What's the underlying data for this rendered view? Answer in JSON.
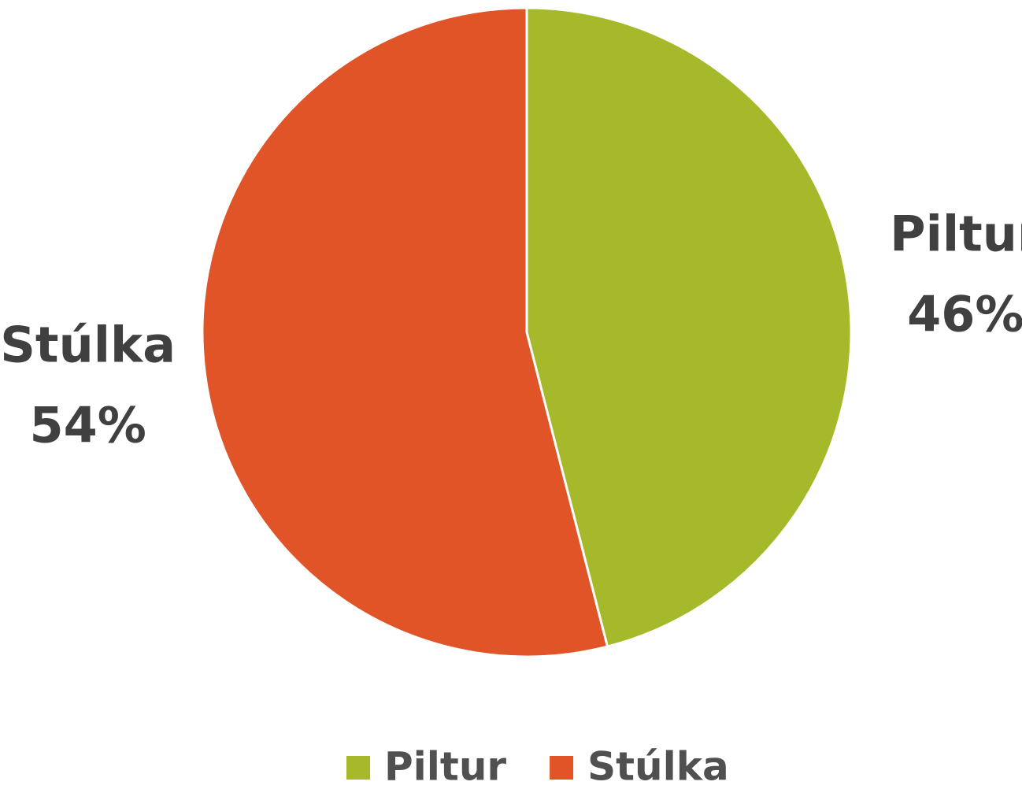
{
  "chart_data": {
    "type": "pie",
    "categories": [
      "Piltur",
      "Stúlka"
    ],
    "values": [
      46,
      54
    ],
    "value_labels": [
      "46%",
      "54%"
    ],
    "colors": [
      "#a6b92a",
      "#e05427"
    ],
    "legend": "bottom"
  }
}
